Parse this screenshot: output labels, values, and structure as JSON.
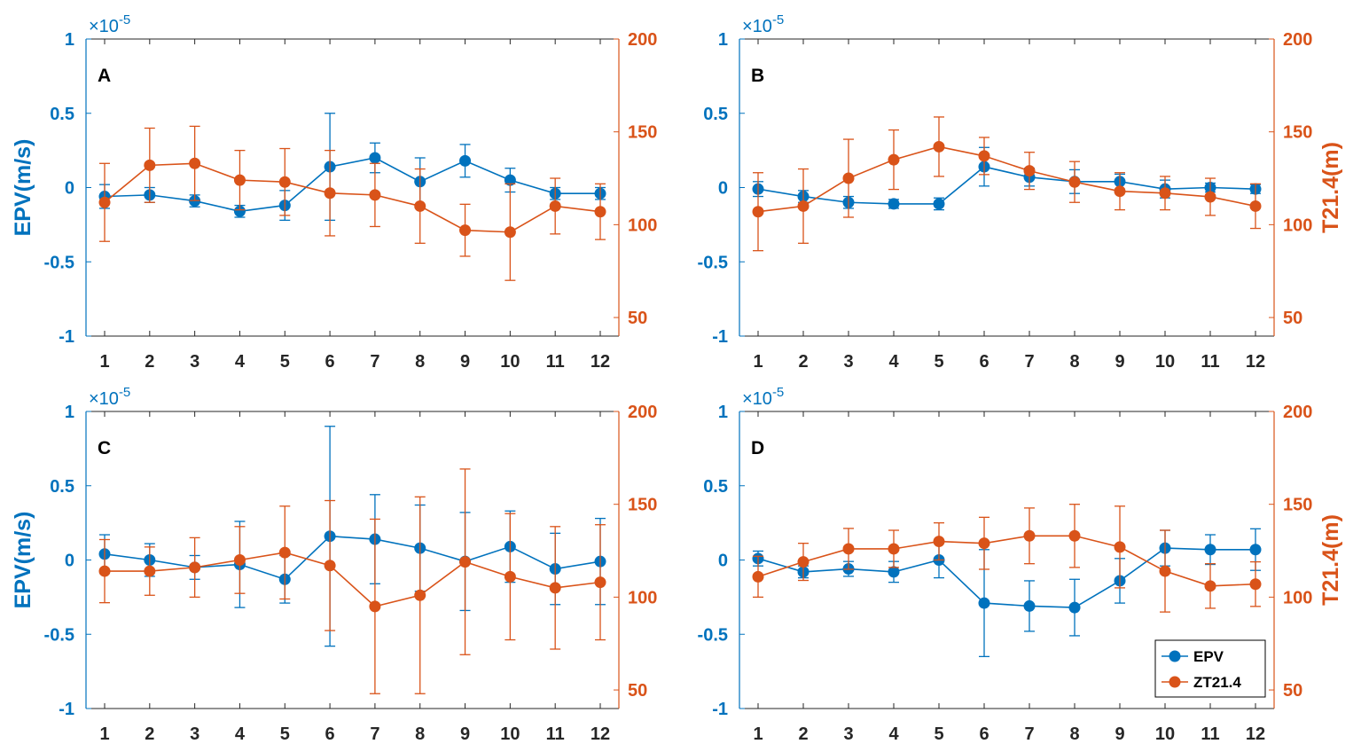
{
  "colors": {
    "epv": "#0072BD",
    "zt": "#D95319",
    "axis": "#262626"
  },
  "legend": {
    "items": [
      "EPV",
      "ZT21.4"
    ],
    "placement": "bottom-right of panel D"
  },
  "chart_data": [
    {
      "type": "line",
      "panel": "A",
      "x": [
        1,
        2,
        3,
        4,
        5,
        6,
        7,
        8,
        9,
        10,
        11,
        12
      ],
      "xticks": [
        "1",
        "2",
        "3",
        "4",
        "5",
        "6",
        "7",
        "8",
        "9",
        "10",
        "11",
        "12"
      ],
      "exponent_label": "×10",
      "exponent_power": "-5",
      "ylabel_left": "EPV(m/s)",
      "ylabel_right": "",
      "ylim_left": [
        -1,
        1
      ],
      "yticks_left": [
        "-1",
        "-0.5",
        "0",
        "0.5",
        "1"
      ],
      "ylim_right": [
        40,
        200
      ],
      "yticks_right": [
        "50",
        "100",
        "150",
        "200"
      ],
      "series": [
        {
          "name": "EPV",
          "axis": "left",
          "values": [
            -0.06,
            -0.05,
            -0.09,
            -0.16,
            -0.12,
            0.14,
            0.2,
            0.04,
            0.18,
            0.05,
            -0.04,
            -0.04
          ],
          "err": [
            0.08,
            0.05,
            0.04,
            0.04,
            0.1,
            0.36,
            0.1,
            0.16,
            0.11,
            0.08,
            0.04,
            0.04
          ]
        },
        {
          "name": "ZT21.4",
          "axis": "right",
          "values": [
            112,
            132,
            133,
            124,
            123,
            117,
            116,
            110,
            97,
            96,
            110,
            107
          ],
          "err": [
            21,
            20,
            20,
            16,
            18,
            23,
            17,
            20,
            14,
            26,
            15,
            15
          ]
        }
      ]
    },
    {
      "type": "line",
      "panel": "B",
      "x": [
        1,
        2,
        3,
        4,
        5,
        6,
        7,
        8,
        9,
        10,
        11,
        12
      ],
      "xticks": [
        "1",
        "2",
        "3",
        "4",
        "5",
        "6",
        "7",
        "8",
        "9",
        "10",
        "11",
        "12"
      ],
      "exponent_label": "×10",
      "exponent_power": "-5",
      "ylabel_left": "",
      "ylabel_right": "T21.4(m)",
      "ylim_left": [
        -1,
        1
      ],
      "yticks_left": [
        "-1",
        "-0.5",
        "0",
        "0.5",
        "1"
      ],
      "ylim_right": [
        40,
        200
      ],
      "yticks_right": [
        "50",
        "100",
        "150",
        "200"
      ],
      "series": [
        {
          "name": "EPV",
          "axis": "left",
          "values": [
            -0.01,
            -0.06,
            -0.1,
            -0.11,
            -0.11,
            0.14,
            0.07,
            0.04,
            0.04,
            -0.01,
            0.0,
            -0.01
          ],
          "err": [
            0.05,
            0.04,
            0.04,
            0.03,
            0.04,
            0.13,
            0.06,
            0.08,
            0.05,
            0.06,
            0.03,
            0.03
          ]
        },
        {
          "name": "ZT21.4",
          "axis": "right",
          "values": [
            107,
            110,
            125,
            135,
            142,
            137,
            129,
            123,
            118,
            117,
            115,
            110
          ],
          "err": [
            21,
            20,
            21,
            16,
            16,
            10,
            10,
            11,
            10,
            9,
            10,
            12
          ]
        }
      ]
    },
    {
      "type": "line",
      "panel": "C",
      "x": [
        1,
        2,
        3,
        4,
        5,
        6,
        7,
        8,
        9,
        10,
        11,
        12
      ],
      "xticks": [
        "1",
        "2",
        "3",
        "4",
        "5",
        "6",
        "7",
        "8",
        "9",
        "10",
        "11",
        "12"
      ],
      "exponent_label": "×10",
      "exponent_power": "-5",
      "ylabel_left": "EPV(m/s)",
      "ylabel_right": "",
      "ylim_left": [
        -1,
        1
      ],
      "yticks_left": [
        "-1",
        "-0.5",
        "0",
        "0.5",
        "1"
      ],
      "ylim_right": [
        40,
        200
      ],
      "yticks_right": [
        "50",
        "100",
        "150",
        "200"
      ],
      "series": [
        {
          "name": "EPV",
          "axis": "left",
          "values": [
            0.04,
            0.0,
            -0.05,
            -0.03,
            -0.13,
            0.16,
            0.14,
            0.08,
            -0.01,
            0.09,
            -0.06,
            -0.01
          ],
          "err": [
            0.13,
            0.11,
            0.08,
            0.29,
            0.16,
            0.74,
            0.3,
            0.29,
            0.33,
            0.24,
            0.24,
            0.29
          ]
        },
        {
          "name": "ZT21.4",
          "axis": "right",
          "values": [
            114,
            114,
            116,
            120,
            124,
            117,
            95,
            101,
            119,
            111,
            105,
            108
          ],
          "err": [
            17,
            13,
            16,
            18,
            25,
            35,
            47,
            53,
            50,
            34,
            33,
            31
          ]
        }
      ]
    },
    {
      "type": "line",
      "panel": "D",
      "x": [
        1,
        2,
        3,
        4,
        5,
        6,
        7,
        8,
        9,
        10,
        11,
        12
      ],
      "xticks": [
        "1",
        "2",
        "3",
        "4",
        "5",
        "6",
        "7",
        "8",
        "9",
        "10",
        "11",
        "12"
      ],
      "exponent_label": "×10",
      "exponent_power": "-5",
      "ylabel_left": "",
      "ylabel_right": "T21.4(m)",
      "ylim_left": [
        -1,
        1
      ],
      "yticks_left": [
        "-1",
        "-0.5",
        "0",
        "0.5",
        "1"
      ],
      "ylim_right": [
        40,
        200
      ],
      "yticks_right": [
        "50",
        "100",
        "150",
        "200"
      ],
      "series": [
        {
          "name": "EPV",
          "axis": "left",
          "values": [
            0.01,
            -0.08,
            -0.06,
            -0.08,
            0.0,
            -0.29,
            -0.31,
            -0.32,
            -0.14,
            0.08,
            0.07,
            0.07
          ],
          "err": [
            0.05,
            0.04,
            0.05,
            0.07,
            0.12,
            0.36,
            0.17,
            0.19,
            0.15,
            0.12,
            0.1,
            0.14
          ]
        },
        {
          "name": "ZT21.4",
          "axis": "right",
          "values": [
            111,
            119,
            126,
            126,
            130,
            129,
            133,
            133,
            127,
            114,
            106,
            107
          ],
          "err": [
            11,
            10,
            11,
            10,
            10,
            14,
            15,
            17,
            22,
            22,
            12,
            12
          ]
        }
      ]
    }
  ]
}
